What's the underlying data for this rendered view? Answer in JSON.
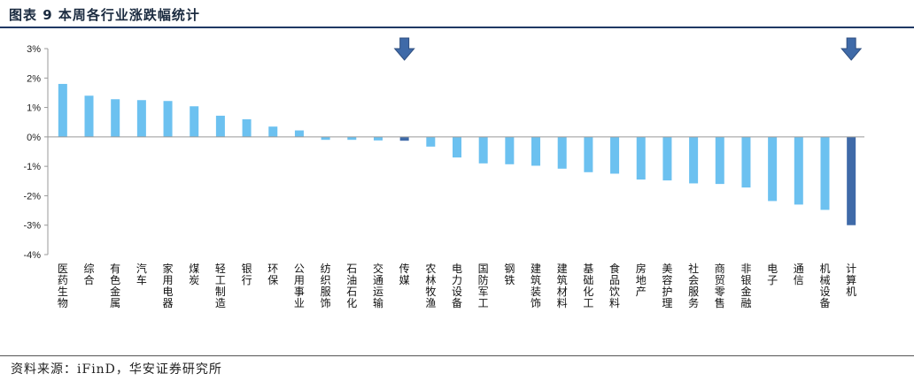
{
  "figure": {
    "title": "图表 9 本周各行业涨跌幅统计",
    "source": "资料来源：iFinD，华安证券研究所"
  },
  "colors": {
    "bar": "#6cc1f0",
    "highlight": "#3f6aa8",
    "arrow": "#3f6aa8",
    "axis": "#999999"
  },
  "chart_data": {
    "type": "bar",
    "title": "本周各行业涨跌幅统计",
    "xlabel": "",
    "ylabel": "",
    "ylim": [
      -0.04,
      0.03
    ],
    "yticks": [
      "3%",
      "2%",
      "1%",
      "0%",
      "-1%",
      "-2%",
      "-3%",
      "-4%"
    ],
    "ytick_values": [
      0.03,
      0.02,
      0.01,
      0,
      -0.01,
      -0.02,
      -0.03,
      -0.04
    ],
    "categories": [
      "医药生物",
      "综合",
      "有色金属",
      "汽车",
      "家用电器",
      "煤炭",
      "轻工制造",
      "银行",
      "环保",
      "公用事业",
      "纺织服饰",
      "石油石化",
      "交通运输",
      "传媒",
      "农林牧渔",
      "电力设备",
      "国防军工",
      "钢铁",
      "建筑装饰",
      "建筑材料",
      "基础化工",
      "食品饮料",
      "房地产",
      "美容护理",
      "社会服务",
      "商贸零售",
      "非银金融",
      "电子",
      "通信",
      "机械设备",
      "计算机"
    ],
    "values": [
      0.018,
      0.014,
      0.0128,
      0.0125,
      0.0122,
      0.0104,
      0.0072,
      0.006,
      0.0035,
      0.0022,
      -0.001,
      -0.001,
      -0.0012,
      -0.0013,
      -0.0033,
      -0.007,
      -0.009,
      -0.0093,
      -0.0098,
      -0.0108,
      -0.012,
      -0.0125,
      -0.0145,
      -0.0148,
      -0.0158,
      -0.016,
      -0.0172,
      -0.0218,
      -0.023,
      -0.0248,
      -0.03
    ],
    "highlighted": [
      "传媒",
      "计算机"
    ],
    "arrows_over": [
      "传媒",
      "计算机"
    ],
    "grid": false,
    "legend": "none"
  }
}
